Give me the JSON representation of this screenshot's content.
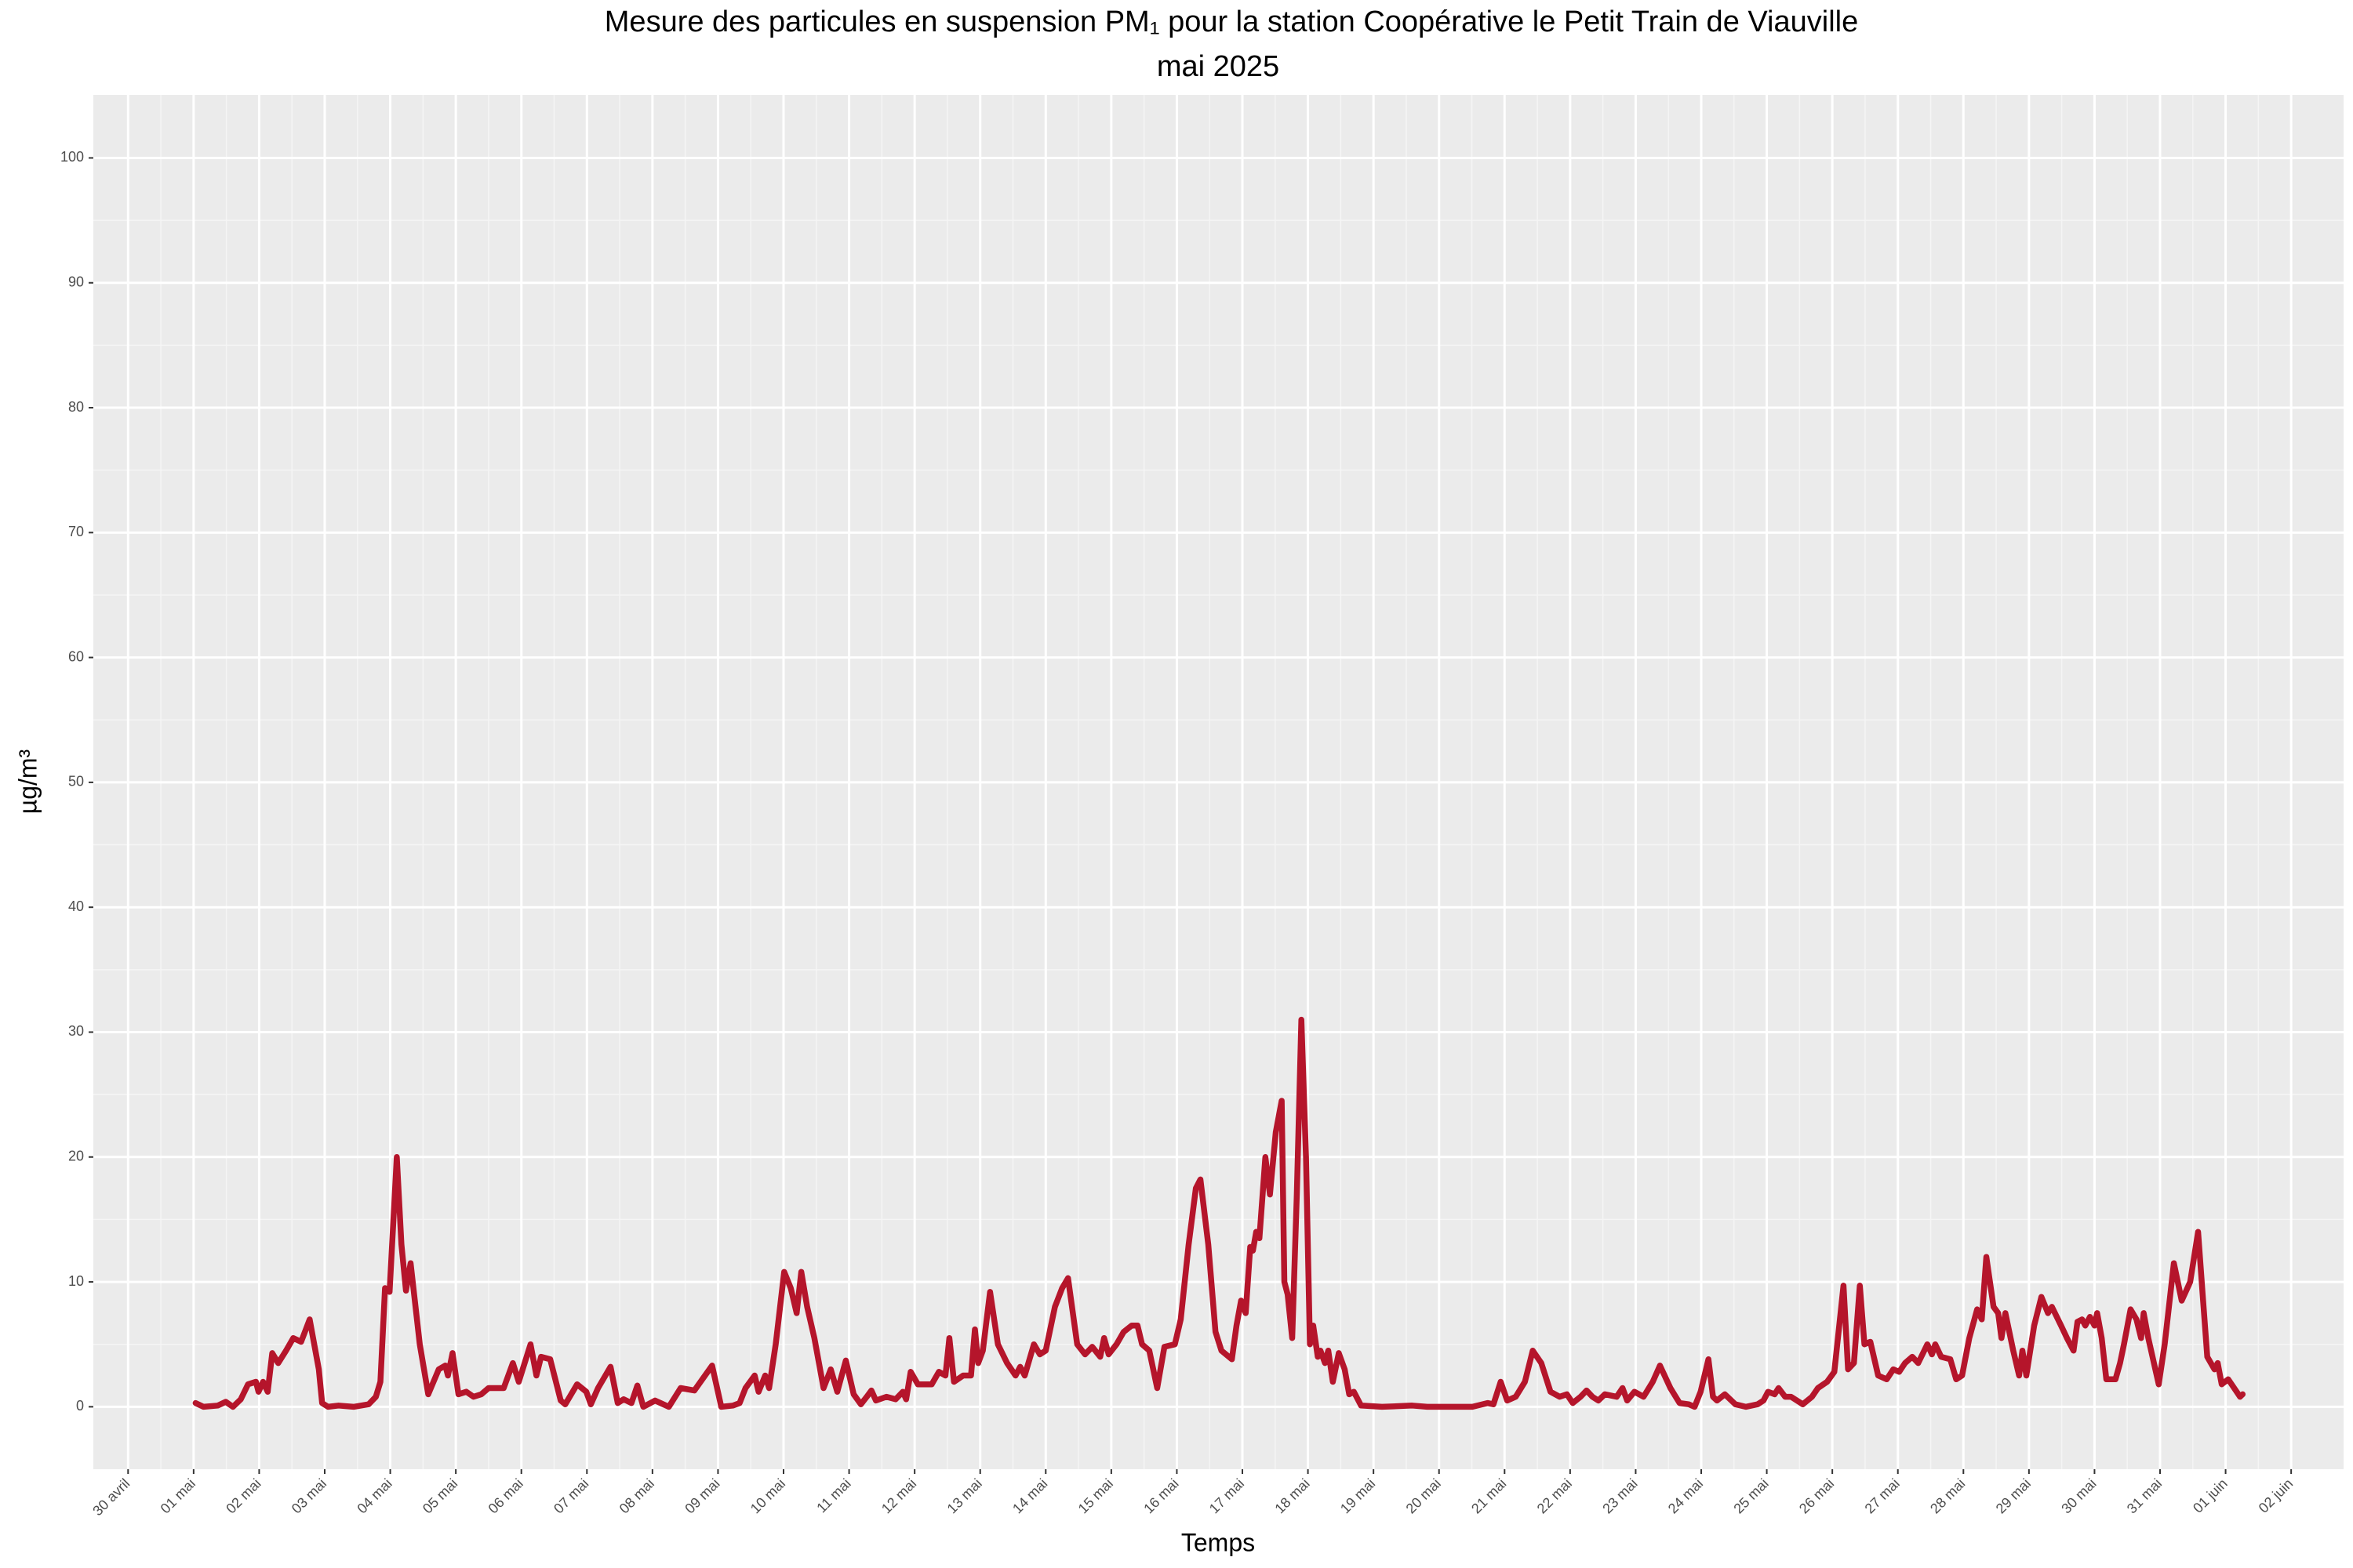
{
  "chart_data": {
    "type": "line",
    "title": "Mesure des particules en suspension  PM₁  pour la station Coopérative le Petit Train de Viauville",
    "subtitle": "mai 2025",
    "x_label": "Temps",
    "y_label": "µg/m³",
    "grid": true,
    "xlim": [
      -0.53,
      33.8
    ],
    "ylim": [
      -5,
      105.05
    ],
    "xticks": [
      {
        "value": 0,
        "label": "30 avril"
      },
      {
        "value": 1,
        "label": "01 mai"
      },
      {
        "value": 2,
        "label": "02 mai"
      },
      {
        "value": 3,
        "label": "03 mai"
      },
      {
        "value": 4,
        "label": "04 mai"
      },
      {
        "value": 5,
        "label": "05 mai"
      },
      {
        "value": 6,
        "label": "06 mai"
      },
      {
        "value": 7,
        "label": "07 mai"
      },
      {
        "value": 8,
        "label": "08 mai"
      },
      {
        "value": 9,
        "label": "09 mai"
      },
      {
        "value": 10,
        "label": "10 mai"
      },
      {
        "value": 11,
        "label": "11 mai"
      },
      {
        "value": 12,
        "label": "12 mai"
      },
      {
        "value": 13,
        "label": "13 mai"
      },
      {
        "value": 14,
        "label": "14 mai"
      },
      {
        "value": 15,
        "label": "15 mai"
      },
      {
        "value": 16,
        "label": "16 mai"
      },
      {
        "value": 17,
        "label": "17 mai"
      },
      {
        "value": 18,
        "label": "18 mai"
      },
      {
        "value": 19,
        "label": "19 mai"
      },
      {
        "value": 20,
        "label": "20 mai"
      },
      {
        "value": 21,
        "label": "21 mai"
      },
      {
        "value": 22,
        "label": "22 mai"
      },
      {
        "value": 23,
        "label": "23 mai"
      },
      {
        "value": 24,
        "label": "24 mai"
      },
      {
        "value": 25,
        "label": "25 mai"
      },
      {
        "value": 26,
        "label": "26 mai"
      },
      {
        "value": 27,
        "label": "27 mai"
      },
      {
        "value": 28,
        "label": "28 mai"
      },
      {
        "value": 29,
        "label": "29 mai"
      },
      {
        "value": 30,
        "label": "30 mai"
      },
      {
        "value": 31,
        "label": "31 mai"
      },
      {
        "value": 32,
        "label": "01 juin"
      },
      {
        "value": 33,
        "label": "02 juin"
      }
    ],
    "yticks": [
      0,
      10,
      20,
      30,
      40,
      50,
      60,
      70,
      80,
      90,
      100
    ],
    "x": [
      1.03,
      1.15,
      1.37,
      1.49,
      1.6,
      1.72,
      1.83,
      1.95,
      1.99,
      2.06,
      2.13,
      2.2,
      2.29,
      2.41,
      2.52,
      2.64,
      2.77,
      2.91,
      2.96,
      3.05,
      3.21,
      3.44,
      3.67,
      3.78,
      3.85,
      3.92,
      3.99,
      4.1,
      4.17,
      4.24,
      4.31,
      4.45,
      4.58,
      4.74,
      4.84,
      4.88,
      4.95,
      5.04,
      5.16,
      5.27,
      5.39,
      5.5,
      5.73,
      5.87,
      5.96,
      6.14,
      6.23,
      6.3,
      6.44,
      6.6,
      6.67,
      6.85,
      6.99,
      7.06,
      7.17,
      7.36,
      7.47,
      7.56,
      7.68,
      7.77,
      7.86,
      8.04,
      8.25,
      8.43,
      8.64,
      8.91,
      9.05,
      9.23,
      9.33,
      9.42,
      9.56,
      9.62,
      9.72,
      9.78,
      9.88,
      10.01,
      10.11,
      10.2,
      10.27,
      10.36,
      10.47,
      10.61,
      10.72,
      10.82,
      10.95,
      11.07,
      11.18,
      11.27,
      11.34,
      11.41,
      11.57,
      11.71,
      11.82,
      11.87,
      11.94,
      12.05,
      12.26,
      12.37,
      12.47,
      12.53,
      12.6,
      12.74,
      12.86,
      12.92,
      12.97,
      13.04,
      13.15,
      13.27,
      13.41,
      13.54,
      13.61,
      13.68,
      13.82,
      13.91,
      14.0,
      14.14,
      14.25,
      14.34,
      14.48,
      14.6,
      14.71,
      14.83,
      14.89,
      14.96,
      15.08,
      15.19,
      15.31,
      15.4,
      15.47,
      15.58,
      15.7,
      15.81,
      15.97,
      16.06,
      16.18,
      16.29,
      16.36,
      16.48,
      16.59,
      16.68,
      16.84,
      16.91,
      16.98,
      17.05,
      17.12,
      17.16,
      17.21,
      17.26,
      17.35,
      17.42,
      17.51,
      17.6,
      17.64,
      17.69,
      17.76,
      17.83,
      17.9,
      17.97,
      18.03,
      18.08,
      18.15,
      18.19,
      18.26,
      18.31,
      18.38,
      18.47,
      18.56,
      18.63,
      18.7,
      18.81,
      19.13,
      19.59,
      19.82,
      20.51,
      20.74,
      20.83,
      20.94,
      21.04,
      21.17,
      21.31,
      21.43,
      21.56,
      21.7,
      21.84,
      21.95,
      22.04,
      22.16,
      22.25,
      22.34,
      22.43,
      22.53,
      22.71,
      22.8,
      22.87,
      22.98,
      23.12,
      23.26,
      23.37,
      23.53,
      23.67,
      23.81,
      23.9,
      23.99,
      24.11,
      24.18,
      24.24,
      24.36,
      24.52,
      24.68,
      24.86,
      24.95,
      25.02,
      25.12,
      25.18,
      25.28,
      25.37,
      25.55,
      25.69,
      25.78,
      25.92,
      26.03,
      26.17,
      26.24,
      26.33,
      26.42,
      26.49,
      26.58,
      26.7,
      26.83,
      26.93,
      27.02,
      27.11,
      27.22,
      27.31,
      27.45,
      27.52,
      27.57,
      27.66,
      27.8,
      27.89,
      27.98,
      28.09,
      28.21,
      28.28,
      28.35,
      28.46,
      28.53,
      28.58,
      28.64,
      28.76,
      28.85,
      28.9,
      28.96,
      29.08,
      29.19,
      29.29,
      29.35,
      29.49,
      29.58,
      29.68,
      29.74,
      29.81,
      29.86,
      29.93,
      30.0,
      30.04,
      30.11,
      30.18,
      30.32,
      30.39,
      30.45,
      30.55,
      30.64,
      30.71,
      30.75,
      30.82,
      30.98,
      31.07,
      31.21,
      31.33,
      31.46,
      31.58,
      31.65,
      31.72,
      31.83,
      31.88,
      31.94,
      32.04,
      32.22,
      32.26
    ],
    "series": [
      {
        "name": "PM1",
        "color": "#b5152b",
        "values": [
          0.3,
          0,
          0.1,
          0.4,
          0,
          0.6,
          1.8,
          2,
          1.2,
          2,
          1.2,
          4.3,
          3.5,
          4.5,
          5.5,
          5.2,
          7,
          3,
          0.3,
          0,
          0.1,
          0,
          0.2,
          0.8,
          2,
          9.5,
          9.2,
          20,
          13,
          9.3,
          11.5,
          5,
          1,
          3,
          3.3,
          2.5,
          4.3,
          1,
          1.2,
          0.8,
          1,
          1.5,
          1.5,
          3.5,
          2,
          5,
          2.5,
          4,
          3.8,
          0.5,
          0.2,
          1.8,
          1.2,
          0.2,
          1.5,
          3.2,
          0.3,
          0.6,
          0.3,
          1.7,
          0,
          0.5,
          0,
          1.5,
          1.3,
          3.3,
          0,
          0.1,
          0.3,
          1.5,
          2.5,
          1.2,
          2.5,
          1.5,
          5,
          10.8,
          9.5,
          7.5,
          10.8,
          8,
          5.5,
          1.5,
          3,
          1.2,
          3.7,
          1,
          0.2,
          0.8,
          1.3,
          0.5,
          0.8,
          0.6,
          1.2,
          0.6,
          2.8,
          1.8,
          1.8,
          2.8,
          2.5,
          5.5,
          2,
          2.5,
          2.5,
          6.2,
          3.5,
          4.5,
          9.2,
          5,
          3.5,
          2.5,
          3.2,
          2.5,
          5,
          4.2,
          4.5,
          8,
          9.5,
          10.3,
          5,
          4.2,
          4.8,
          4,
          5.5,
          4.2,
          5,
          6,
          6.5,
          6.5,
          5,
          4.5,
          1.5,
          4.8,
          5,
          7,
          13,
          17.5,
          18.2,
          13,
          6,
          4.5,
          3.8,
          6.5,
          8.5,
          7.5,
          12.8,
          12.5,
          14,
          13.5,
          20,
          17,
          22,
          24.5,
          10,
          9,
          5.5,
          17,
          31,
          20,
          5,
          6.5,
          4,
          4.5,
          3.5,
          4.5,
          2,
          4.3,
          3,
          1,
          1.2,
          0.1,
          0,
          0.1,
          0,
          0,
          0.3,
          0.2,
          2,
          0.5,
          0.8,
          2,
          4.5,
          3.5,
          1.2,
          0.8,
          1,
          0.3,
          0.8,
          1.3,
          0.8,
          0.5,
          1,
          0.8,
          1.5,
          0.5,
          1.2,
          0.8,
          2,
          3.3,
          1.5,
          0.3,
          0.2,
          0,
          1.2,
          3.8,
          0.8,
          0.5,
          1,
          0.2,
          0,
          0.2,
          0.5,
          1.2,
          1,
          1.5,
          0.8,
          0.8,
          0.2,
          0.8,
          1.5,
          2,
          2.8,
          9.7,
          3,
          3.5,
          9.7,
          5,
          5.2,
          2.5,
          2.2,
          3,
          2.8,
          3.5,
          4,
          3.5,
          5,
          4.2,
          5,
          4,
          3.8,
          2.2,
          2.5,
          5.5,
          7.8,
          7,
          12,
          8,
          7.5,
          5.5,
          7.5,
          4.5,
          2.5,
          4.5,
          2.5,
          6.5,
          8.8,
          7.5,
          8,
          6.5,
          5.5,
          4.5,
          6.8,
          7,
          6.5,
          7.2,
          6.5,
          7.5,
          5.5,
          2.2,
          2.2,
          3.5,
          5,
          7.8,
          7,
          5.5,
          7.5,
          5.5,
          1.8,
          5,
          11.5,
          8.5,
          10,
          14,
          9,
          4,
          3,
          3.5,
          1.8,
          2.2,
          0.8,
          1
        ]
      }
    ]
  }
}
